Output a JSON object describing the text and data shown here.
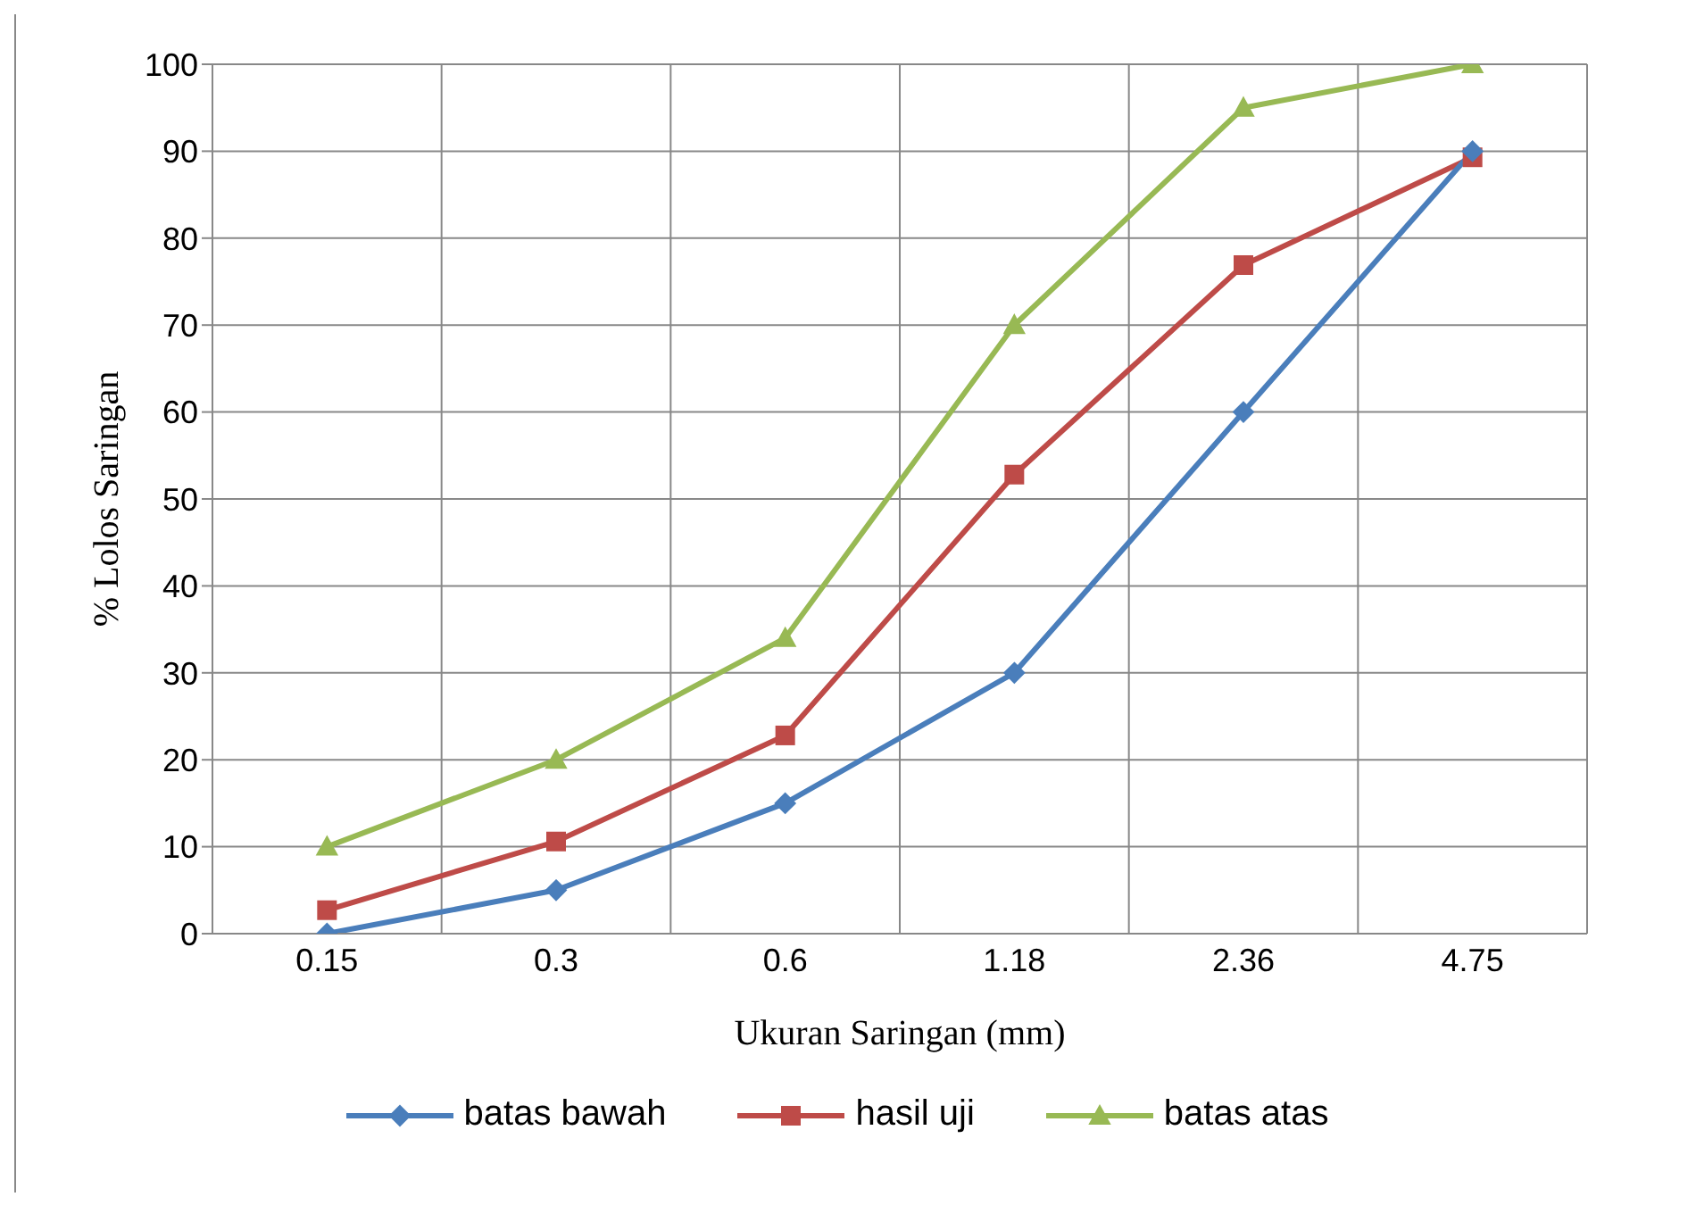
{
  "chart_data": {
    "type": "line",
    "xlabel": "Ukuran Saringan (mm)",
    "ylabel": "% Lolos Saringan",
    "categories": [
      "0.15",
      "0.3",
      "0.6",
      "1.18",
      "2.36",
      "4.75"
    ],
    "series": [
      {
        "name": "batas bawah",
        "color": "#4a7ebb",
        "values": [
          0,
          5,
          15,
          30,
          60,
          90
        ],
        "marker": "diamond"
      },
      {
        "name": "hasil uji",
        "color": "#be4b48",
        "values": [
          2.7,
          10.6,
          22.8,
          52.8,
          76.9,
          89.3
        ],
        "marker": "square"
      },
      {
        "name": "batas atas",
        "color": "#98b954",
        "values": [
          10,
          20,
          34,
          70,
          95,
          100
        ],
        "marker": "triangle"
      }
    ],
    "ylim": [
      0,
      100
    ],
    "yticks": [
      0,
      10,
      20,
      30,
      40,
      50,
      60,
      70,
      80,
      90,
      100
    ],
    "grid": true,
    "legend": "bottom",
    "line_style": "solid"
  }
}
